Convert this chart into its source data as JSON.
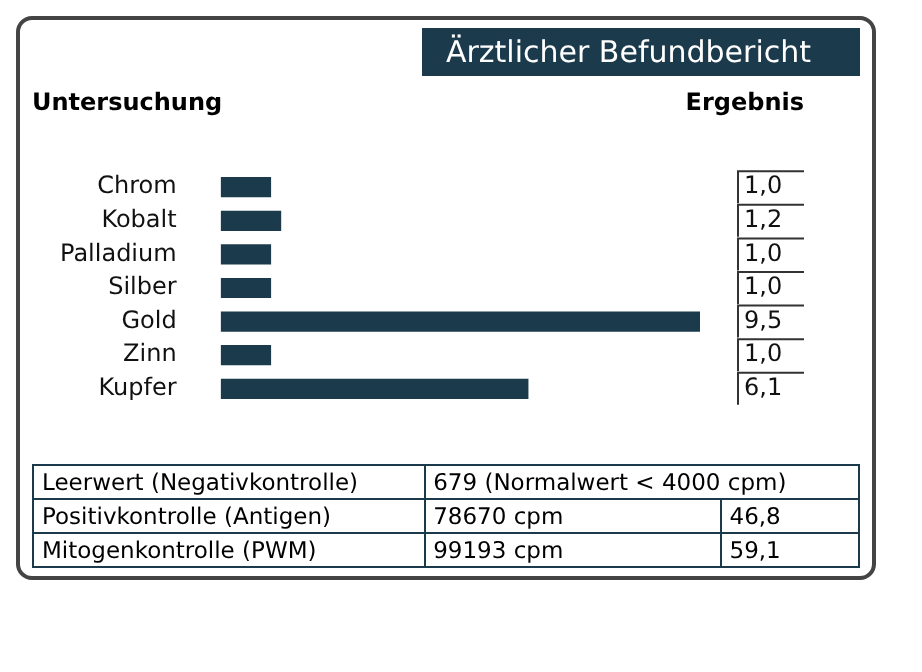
{
  "chart_data": {
    "type": "bar",
    "orientation": "horizontal",
    "title": "Ärztlicher Befundbericht",
    "ylabel": "Untersuchung",
    "y2label": "Ergebnis",
    "categories": [
      "Chrom",
      "Kobalt",
      "Palladium",
      "Silber",
      "Gold",
      "Zinn",
      "Kupfer"
    ],
    "values": [
      1.0,
      1.2,
      1.0,
      1.0,
      9.5,
      1.0,
      6.1
    ],
    "value_labels": [
      "1,0",
      "1,2",
      "1,0",
      "1,0",
      "9,5",
      "1,0",
      "6,1"
    ],
    "color": "#1b3a4b",
    "grid": false,
    "legend": false,
    "annotations": [
      "Leerwert (Negativkontrolle)",
      "679  (Normalwert < 4000 cpm)",
      "Positivkontrolle (Antigen)",
      "78670  cpm",
      "46,8",
      "Mitogenkontrolle (PWM)",
      "99193  cpm",
      "59,1"
    ]
  }
}
